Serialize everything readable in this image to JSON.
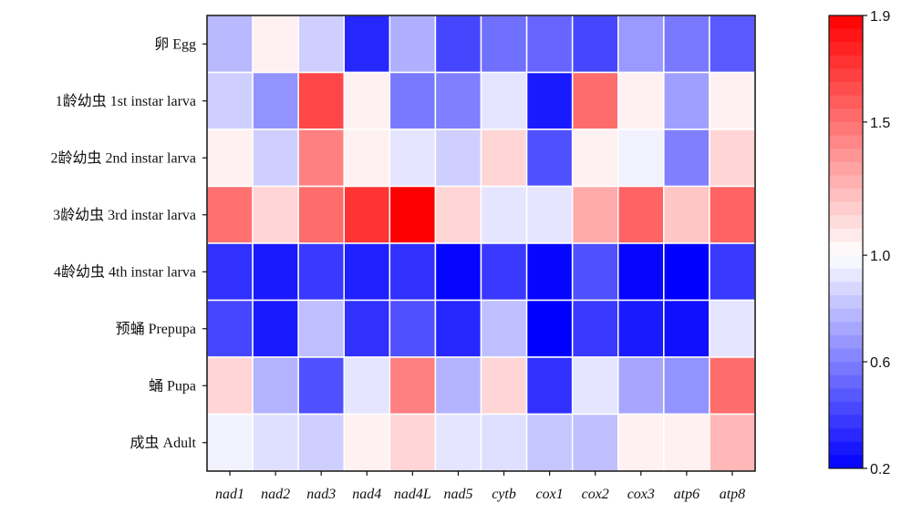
{
  "chart_data": {
    "type": "heatmap",
    "rows": [
      "卵 Egg",
      "1龄幼虫 1st instar larva",
      "2龄幼虫 2nd instar larva",
      "3龄幼虫 3rd instar larva",
      "4龄幼虫 4th instar larva",
      "预蛹 Prepupa",
      "蛹 Pupa",
      "成虫 Adult"
    ],
    "columns": [
      "nad1",
      "nad2",
      "nad3",
      "nad4",
      "nad4L",
      "nad5",
      "cytb",
      "cox1",
      "cox2",
      "cox3",
      "atp6",
      "atp8"
    ],
    "values": [
      [
        0.78,
        1.05,
        0.85,
        0.32,
        0.75,
        0.42,
        0.55,
        0.52,
        0.42,
        0.68,
        0.58,
        0.48
      ],
      [
        0.85,
        0.66,
        1.65,
        1.05,
        0.58,
        0.6,
        0.92,
        0.28,
        1.52,
        1.05,
        0.7,
        1.05
      ],
      [
        1.05,
        0.85,
        1.45,
        1.05,
        0.92,
        0.85,
        1.15,
        0.45,
        1.05,
        0.96,
        0.6,
        1.15
      ],
      [
        1.5,
        1.15,
        1.52,
        1.72,
        1.9,
        1.15,
        0.92,
        0.92,
        1.3,
        1.55,
        1.2,
        1.55
      ],
      [
        0.35,
        0.28,
        0.38,
        0.3,
        0.35,
        0.22,
        0.38,
        0.22,
        0.45,
        0.22,
        0.2,
        0.38
      ],
      [
        0.42,
        0.28,
        0.8,
        0.35,
        0.45,
        0.32,
        0.8,
        0.2,
        0.38,
        0.28,
        0.25,
        0.92
      ],
      [
        1.15,
        0.76,
        0.45,
        0.92,
        1.45,
        0.76,
        1.15,
        0.35,
        0.92,
        0.72,
        0.66,
        1.52
      ],
      [
        0.96,
        0.9,
        0.85,
        1.05,
        1.15,
        0.92,
        0.9,
        0.82,
        0.8,
        1.05,
        1.05,
        1.25
      ]
    ],
    "colorbar": {
      "min": 0.2,
      "max": 1.9,
      "mid": 1.0,
      "ticks": [
        "1.9",
        "1.5",
        "1.0",
        "0.6",
        "0.2"
      ],
      "tick_values": [
        1.9,
        1.5,
        1.0,
        0.6,
        0.2
      ]
    },
    "colors": {
      "low": "#0000ff",
      "mid": "#ffffff",
      "high": "#ff0000"
    },
    "grid": true
  }
}
